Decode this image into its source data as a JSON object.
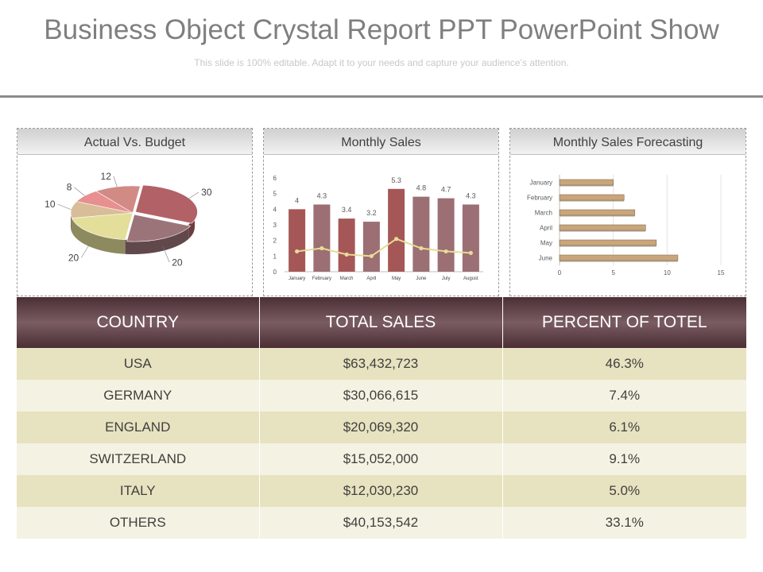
{
  "header": {
    "title": "Business Object Crystal Report PPT PowerPoint Show",
    "subtitle": "This slide is 100% editable. Adapt it to your needs and capture your audience’s attention."
  },
  "colors": {
    "bar_dark": "#a55757",
    "bar_mauve": "#9b6f73",
    "line": "#e6dc96",
    "forecast_bar": "#c8a57a",
    "table_header": "#5a3f45",
    "row_odd": "#e7e2bf",
    "row_even": "#f4f2e2"
  },
  "chart_data": [
    {
      "type": "pie",
      "title": "Actual Vs. Budget",
      "labels": [
        "30",
        "20",
        "20",
        "10",
        "8",
        "12"
      ],
      "values": [
        30,
        20,
        20,
        10,
        8,
        12
      ],
      "colors": [
        "#b26166",
        "#9b7479",
        "#e3df9a",
        "#d8bd99",
        "#e7908f",
        "#d28a85"
      ]
    },
    {
      "type": "bar",
      "title": "Monthly Sales",
      "categories": [
        "January",
        "February",
        "March",
        "April",
        "May",
        "June",
        "July",
        "August"
      ],
      "series": [
        {
          "values": [
            4,
            4.3,
            3.4,
            3.2,
            5.3,
            4.8,
            4.7,
            4.3
          ]
        },
        {
          "type": "line",
          "values": [
            1.3,
            1.5,
            1.1,
            1.0,
            2.1,
            1.5,
            1.3,
            1.2
          ]
        }
      ],
      "data_labels": [
        "4",
        "4.3",
        "3.4",
        "3.2",
        "5.3",
        "4.8",
        "4.7",
        "4.3"
      ],
      "ylim": [
        0,
        6
      ],
      "yticks": [
        "0",
        "1",
        "2",
        "3",
        "4",
        "5",
        "6"
      ]
    },
    {
      "type": "bar",
      "orientation": "horizontal",
      "title": "Monthly Sales Forecasting",
      "categories": [
        "January",
        "February",
        "March",
        "April",
        "May",
        "June"
      ],
      "values": [
        5,
        6,
        7,
        8,
        9,
        11
      ],
      "xlim": [
        0,
        15
      ],
      "xticks": [
        "0",
        "5",
        "10",
        "15"
      ]
    }
  ],
  "table": {
    "headers": [
      "COUNTRY",
      "TOTAL SALES",
      "PERCENT OF TOTEL"
    ],
    "rows": [
      [
        "USA",
        "$63,432,723",
        "46.3%"
      ],
      [
        "GERMANY",
        "$30,066,615",
        "7.4%"
      ],
      [
        "ENGLAND",
        "$20,069,320",
        "6.1%"
      ],
      [
        "SWITZERLAND",
        "$15,052,000",
        "9.1%"
      ],
      [
        "ITALY",
        "$12,030,230",
        "5.0%"
      ],
      [
        "OTHERS",
        "$40,153,542",
        "33.1%"
      ]
    ]
  }
}
